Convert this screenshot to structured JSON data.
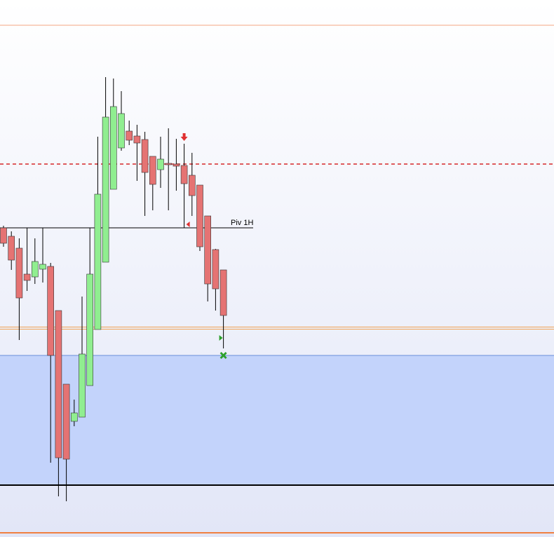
{
  "chart_data": {
    "type": "candlestick",
    "ylim": [
      0,
      766
    ],
    "up_color": "#90ee90",
    "down_color": "#e57373",
    "outline_color": "#333333",
    "candles": [
      {
        "open": 441,
        "high": 444,
        "low": 414,
        "close": 419
      },
      {
        "open": 429,
        "high": 436,
        "low": 381,
        "close": 395
      },
      {
        "open": 412,
        "high": 426,
        "low": 281,
        "close": 341
      },
      {
        "open": 375,
        "high": 441,
        "low": 351,
        "close": 366
      },
      {
        "open": 371,
        "high": 426,
        "low": 361,
        "close": 393
      },
      {
        "open": 382,
        "high": 441,
        "low": 363,
        "close": 389
      },
      {
        "open": 386,
        "high": 391,
        "low": 106,
        "close": 259
      },
      {
        "open": 323,
        "high": 323,
        "low": 58,
        "close": 113
      },
      {
        "open": 218,
        "high": 218,
        "low": 51,
        "close": 111
      },
      {
        "open": 165,
        "high": 196,
        "low": 158,
        "close": 177
      },
      {
        "open": 171,
        "high": 343,
        "low": 171,
        "close": 261
      },
      {
        "open": 216,
        "high": 441,
        "low": 216,
        "close": 375
      },
      {
        "open": 296,
        "high": 571,
        "low": 296,
        "close": 489
      },
      {
        "open": 392,
        "high": 656,
        "low": 392,
        "close": 599
      },
      {
        "open": 496,
        "high": 654,
        "low": 496,
        "close": 614
      },
      {
        "open": 555,
        "high": 636,
        "low": 551,
        "close": 604
      },
      {
        "open": 579,
        "high": 594,
        "low": 559,
        "close": 566
      },
      {
        "open": 572,
        "high": 588,
        "low": 508,
        "close": 562
      },
      {
        "open": 567,
        "high": 578,
        "low": 458,
        "close": 520
      },
      {
        "open": 543,
        "high": 543,
        "low": 466,
        "close": 503
      },
      {
        "open": 524,
        "high": 571,
        "low": 498,
        "close": 539
      },
      {
        "open": 533,
        "high": 583,
        "low": 466,
        "close": 531
      },
      {
        "open": 532,
        "high": 568,
        "low": 494,
        "close": 529
      },
      {
        "open": 530,
        "high": 561,
        "low": 441,
        "close": 504
      },
      {
        "open": 516,
        "high": 548,
        "low": 458,
        "close": 487
      },
      {
        "open": 502,
        "high": 502,
        "low": 408,
        "close": 414
      },
      {
        "open": 458,
        "high": 458,
        "low": 336,
        "close": 361
      },
      {
        "open": 410,
        "high": 411,
        "low": 323,
        "close": 354
      },
      {
        "open": 381,
        "high": 381,
        "low": 269,
        "close": 316
      }
    ],
    "zone": {
      "top": 259,
      "bottom": 74,
      "color": "#c3d3fb",
      "border": "#6a8fd8"
    },
    "levels": [
      {
        "value": 730,
        "color": "#f4a582",
        "style": "solid",
        "width": 1
      },
      {
        "value": 532,
        "color": "#d62728",
        "style": "dashed",
        "width": 1.5
      },
      {
        "value": 298,
        "color": "#f0a050",
        "style": "double",
        "width": 1
      },
      {
        "value": 74,
        "color": "#000000",
        "style": "solid",
        "width": 2
      },
      {
        "value": 6,
        "color": "#f08040",
        "style": "solid",
        "width": 2
      }
    ],
    "pivot": {
      "value": 441,
      "label": "Piv 1H",
      "color": "#000000"
    },
    "signals": [
      {
        "index": 23,
        "value": 570,
        "shape": "arrow-down",
        "color": "#e03030"
      },
      {
        "index": 23,
        "value": 446,
        "shape": "triangle-left",
        "color": "#e03030"
      },
      {
        "index": 28,
        "value": 284,
        "shape": "triangle-right",
        "color": "#2ca02c"
      },
      {
        "index": 28,
        "value": 259,
        "shape": "cross",
        "color": "#2ca02c"
      }
    ]
  }
}
